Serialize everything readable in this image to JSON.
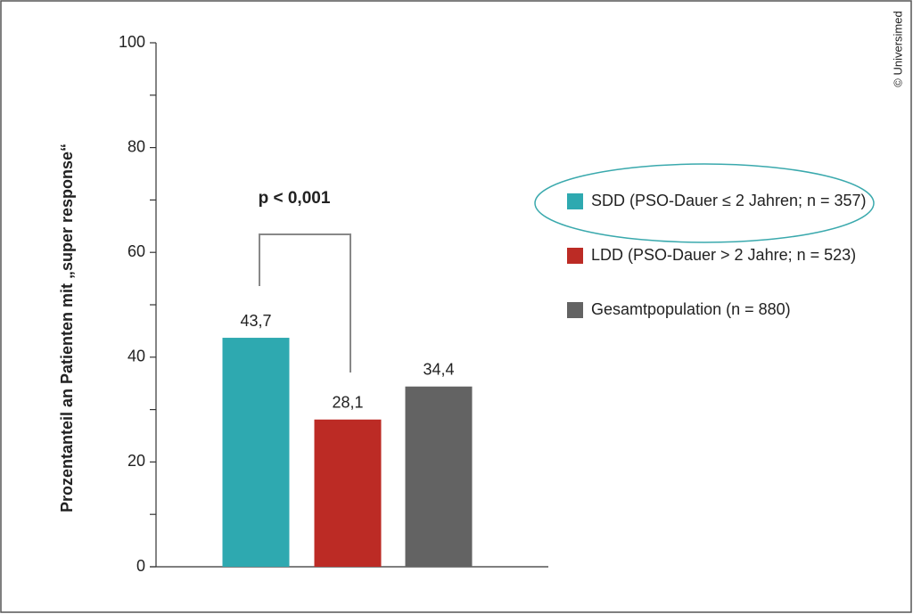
{
  "chart_data": {
    "type": "bar",
    "y_label": "Prozentanteil an Patienten mit „super response“",
    "categories": [
      "SDD (PSO-Dauer ≤ 2 Jahren; n = 357)",
      "LDD (PSO-Dauer > 2 Jahre; n = 523)",
      "Gesamtpopulation (n = 880)"
    ],
    "values": [
      43.7,
      28.1,
      34.4
    ],
    "value_labels": [
      "43,7",
      "28,1",
      "34,4"
    ],
    "colors": [
      "#2ea9b0",
      "#bc2b25",
      "#636363"
    ],
    "ylim": [
      0,
      100
    ],
    "yticks": [
      0,
      20,
      40,
      60,
      80,
      100
    ],
    "yticks_minor": [
      10,
      30,
      50,
      70,
      90
    ],
    "annotation": "p < 0,001",
    "copyright": "© Universimed"
  }
}
